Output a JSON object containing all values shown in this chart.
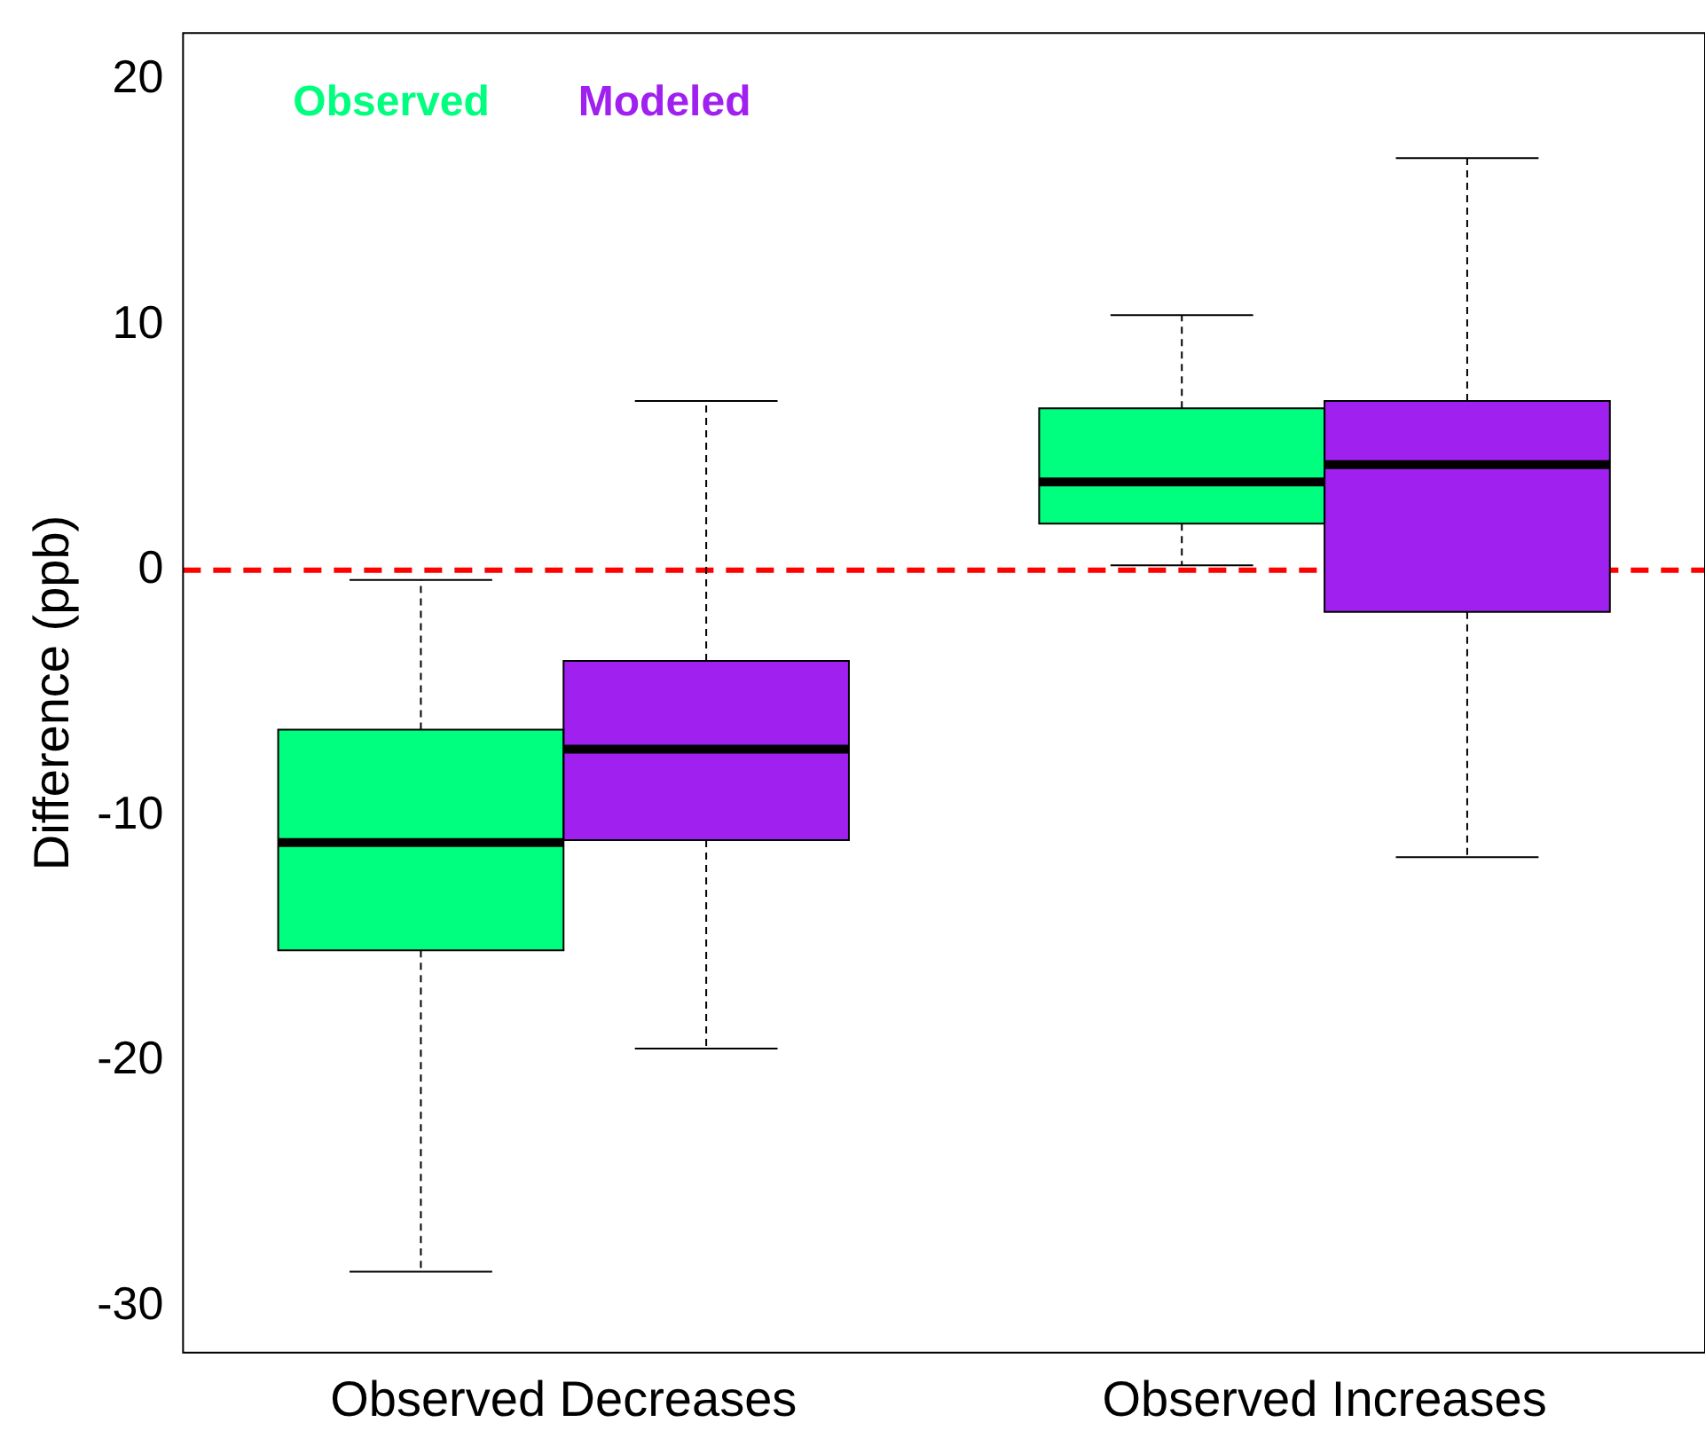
{
  "chart_data": {
    "type": "box",
    "ylabel": "Difference (ppb)",
    "categories": [
      "Observed Decreases",
      "Observed Increases"
    ],
    "series": [
      {
        "name": "Observed",
        "color": "#00ff7f",
        "boxes": [
          {
            "low": -28.6,
            "q1": -15.5,
            "median": -11.1,
            "q3": -6.5,
            "high": -0.4
          },
          {
            "low": 0.2,
            "q1": 1.9,
            "median": 3.6,
            "q3": 6.6,
            "high": 10.4
          }
        ]
      },
      {
        "name": "Modeled",
        "color": "#a020f0",
        "boxes": [
          {
            "low": -19.5,
            "q1": -11.0,
            "median": -7.3,
            "q3": -3.7,
            "high": 6.9
          },
          {
            "low": -11.7,
            "q1": -1.7,
            "median": 4.3,
            "q3": 6.9,
            "high": 16.8
          }
        ]
      }
    ],
    "ylim": [
      -31.9,
      21.9
    ],
    "yticks": [
      -30,
      -20,
      -10,
      0,
      10,
      20
    ],
    "ref_lines": [
      {
        "axis": "y",
        "value": 0,
        "color": "#ff0000",
        "line_style": "dashed"
      }
    ],
    "legend": "top left",
    "grid": false
  }
}
